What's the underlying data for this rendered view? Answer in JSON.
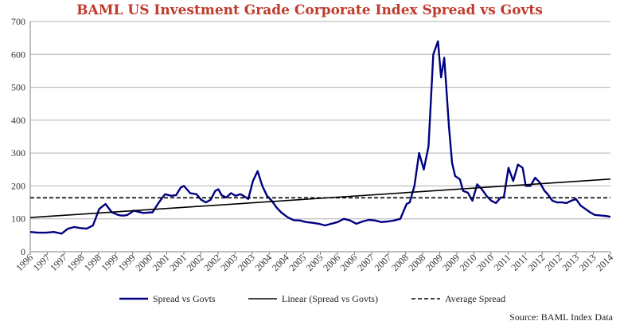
{
  "chart_data": {
    "type": "line",
    "title": "BAML US Investment Grade Corporate Index Spread vs Govts",
    "title_color": "#c0392b",
    "source": "Source: BAML Index Data",
    "ylim": [
      0,
      700
    ],
    "y_ticks": [
      0,
      100,
      200,
      300,
      400,
      500,
      600,
      700
    ],
    "xlim": [
      1996,
      2014.5
    ],
    "x_tick_labels": [
      "1996",
      "1997",
      "1997",
      "1998",
      "1998",
      "1999",
      "1999",
      "2000",
      "2001",
      "2001",
      "2002",
      "2002",
      "2003",
      "2003",
      "2004",
      "2004",
      "2005",
      "2005",
      "2006",
      "2006",
      "2007",
      "2007",
      "2008",
      "2008",
      "2009",
      "2009",
      "2010",
      "2010",
      "2011",
      "2011",
      "2012",
      "2012",
      "2013",
      "2013",
      "2014"
    ],
    "grid": true,
    "legend_position": "bottom",
    "series": [
      {
        "name": "Spread vs Govts",
        "color": "#000080",
        "style": "solid",
        "x": [
          1996.0,
          1996.25,
          1996.5,
          1996.75,
          1997.0,
          1997.2,
          1997.4,
          1997.6,
          1997.8,
          1998.0,
          1998.2,
          1998.4,
          1998.6,
          1998.8,
          1998.9,
          1999.0,
          1999.1,
          1999.2,
          1999.3,
          1999.6,
          1999.9,
          2000.1,
          2000.3,
          2000.5,
          2000.65,
          2000.8,
          2000.9,
          2001.1,
          2001.3,
          2001.45,
          2001.6,
          2001.75,
          2001.9,
          2002.0,
          2002.1,
          2002.25,
          2002.4,
          2002.55,
          2002.7,
          2002.8,
          2002.95,
          2003.1,
          2003.25,
          2003.4,
          2003.55,
          2003.7,
          2003.85,
          2004.0,
          2004.2,
          2004.4,
          2004.6,
          2004.8,
          2005.0,
          2005.2,
          2005.4,
          2005.6,
          2005.8,
          2006.0,
          2006.2,
          2006.4,
          2006.6,
          2006.8,
          2007.0,
          2007.2,
          2007.4,
          2007.6,
          2007.8,
          2008.0,
          2008.1,
          2008.25,
          2008.4,
          2008.55,
          2008.7,
          2008.85,
          2009.0,
          2009.1,
          2009.2,
          2009.35,
          2009.45,
          2009.55,
          2009.7,
          2009.8,
          2009.95,
          2010.1,
          2010.25,
          2010.4,
          2010.55,
          2010.7,
          2010.85,
          2011.0,
          2011.1,
          2011.25,
          2011.4,
          2011.55,
          2011.7,
          2011.8,
          2011.95,
          2012.1,
          2012.25,
          2012.4,
          2012.5,
          2012.65,
          2012.8,
          2012.95,
          2013.1,
          2013.25,
          2013.4,
          2013.55,
          2013.7,
          2013.85,
          2014.0,
          2014.2,
          2014.4,
          2014.5
        ],
        "y": [
          60,
          58,
          58,
          60,
          55,
          70,
          75,
          72,
          70,
          80,
          130,
          145,
          120,
          112,
          110,
          110,
          112,
          118,
          125,
          118,
          120,
          150,
          175,
          170,
          172,
          195,
          200,
          178,
          175,
          158,
          150,
          158,
          185,
          190,
          172,
          165,
          178,
          170,
          175,
          170,
          160,
          215,
          245,
          200,
          170,
          155,
          135,
          120,
          105,
          96,
          95,
          90,
          88,
          85,
          80,
          85,
          90,
          100,
          95,
          85,
          92,
          97,
          95,
          90,
          92,
          95,
          100,
          145,
          150,
          200,
          300,
          250,
          320,
          600,
          640,
          530,
          590,
          380,
          270,
          230,
          220,
          185,
          180,
          155,
          205,
          190,
          170,
          155,
          148,
          165,
          165,
          255,
          215,
          265,
          255,
          200,
          200,
          225,
          210,
          185,
          175,
          155,
          150,
          150,
          148,
          155,
          160,
          140,
          130,
          120,
          112,
          110,
          108,
          106
        ],
        "x_break_note": ""
      },
      {
        "name": "Linear (Spread vs Govts)",
        "color": "#000000",
        "style": "solid",
        "x": [
          1996.0,
          2014.5
        ],
        "y": [
          104,
          221
        ]
      },
      {
        "name": "Average Spread",
        "color": "#000000",
        "style": "dashed",
        "x": [
          1996.0,
          2014.5
        ],
        "y": [
          164,
          164
        ]
      }
    ]
  }
}
